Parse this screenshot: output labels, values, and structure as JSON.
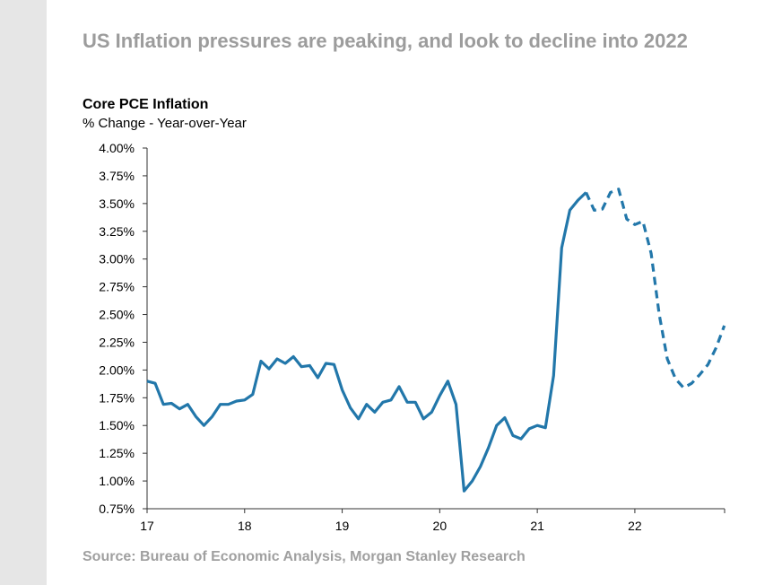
{
  "headline": "US Inflation pressures are peaking, and look to decline into 2022",
  "source": "Source: Bureau of Economic Analysis, Morgan Stanley Research",
  "chart_data": {
    "type": "line",
    "title": "Core PCE Inflation",
    "subtitle": "% Change - Year-over-Year",
    "xlabel": "",
    "ylabel": "",
    "xlim": [
      2017,
      2022.92
    ],
    "ylim": [
      0.75,
      4.0
    ],
    "x_ticks": [
      2017,
      2018,
      2019,
      2020,
      2021,
      2022
    ],
    "x_tick_labels": [
      "17",
      "18",
      "19",
      "20",
      "21",
      "22"
    ],
    "y_ticks": [
      0.75,
      1.0,
      1.25,
      1.5,
      1.75,
      2.0,
      2.25,
      2.5,
      2.75,
      3.0,
      3.25,
      3.5,
      3.75,
      4.0
    ],
    "y_tick_labels": [
      "0.75%",
      "1.00%",
      "1.25%",
      "1.50%",
      "1.75%",
      "2.00%",
      "2.25%",
      "2.50%",
      "2.75%",
      "3.00%",
      "3.25%",
      "3.50%",
      "3.75%",
      "4.00%"
    ],
    "grid": false,
    "line_color": "#2277aa",
    "series": [
      {
        "style": "solid",
        "x": [
          2017.0,
          2017.083,
          2017.167,
          2017.25,
          2017.333,
          2017.417,
          2017.5,
          2017.583,
          2017.667,
          2017.75,
          2017.833,
          2017.917,
          2018.0,
          2018.083,
          2018.167,
          2018.25,
          2018.333,
          2018.417,
          2018.5,
          2018.583,
          2018.667,
          2018.75,
          2018.833,
          2018.917,
          2019.0,
          2019.083,
          2019.167,
          2019.25,
          2019.333,
          2019.417,
          2019.5,
          2019.583,
          2019.667,
          2019.75,
          2019.833,
          2019.917,
          2020.0,
          2020.083,
          2020.167,
          2020.25,
          2020.333,
          2020.417,
          2020.5,
          2020.583,
          2020.667,
          2020.75,
          2020.833,
          2020.917,
          2021.0,
          2021.083,
          2021.167,
          2021.25,
          2021.333,
          2021.417,
          2021.5
        ],
        "y": [
          1.9,
          1.88,
          1.69,
          1.7,
          1.65,
          1.69,
          1.58,
          1.5,
          1.58,
          1.69,
          1.69,
          1.72,
          1.73,
          1.78,
          2.08,
          2.01,
          2.1,
          2.06,
          2.12,
          2.03,
          2.04,
          1.93,
          2.06,
          2.05,
          1.82,
          1.66,
          1.56,
          1.69,
          1.62,
          1.71,
          1.73,
          1.85,
          1.71,
          1.71,
          1.56,
          1.62,
          1.77,
          1.9,
          1.69,
          0.91,
          1.0,
          1.13,
          1.3,
          1.5,
          1.57,
          1.41,
          1.38,
          1.47,
          1.5,
          1.48,
          1.95,
          3.1,
          3.44,
          3.53,
          3.6
        ]
      },
      {
        "style": "dashed",
        "x": [
          2021.5,
          2021.583,
          2021.667,
          2021.75,
          2021.833,
          2021.917,
          2022.0,
          2022.083,
          2022.167,
          2022.25,
          2022.333,
          2022.417,
          2022.5,
          2022.583,
          2022.667,
          2022.75,
          2022.833,
          2022.917
        ],
        "y": [
          3.6,
          3.44,
          3.45,
          3.6,
          3.63,
          3.36,
          3.31,
          3.34,
          3.05,
          2.5,
          2.1,
          1.92,
          1.84,
          1.88,
          1.96,
          2.05,
          2.2,
          2.4
        ]
      }
    ]
  }
}
